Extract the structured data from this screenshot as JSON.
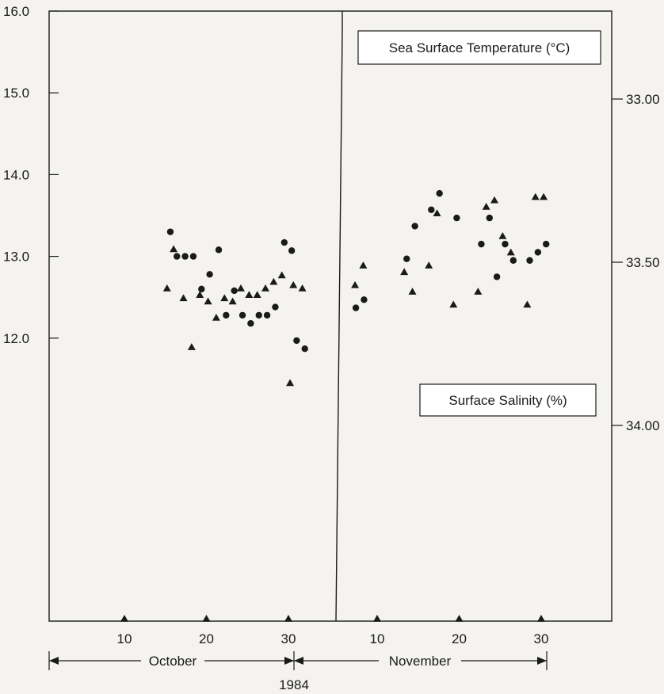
{
  "chart_data": {
    "type": "scatter",
    "left_axis": {
      "ticks": [
        "16.0",
        "15.0",
        "14.0",
        "13.0",
        "12.0"
      ],
      "ylim": [
        11.0,
        16.0
      ],
      "grid": false
    },
    "right_axis": {
      "ticks": [
        "34.00",
        "33.50",
        "33.00"
      ],
      "ylim": [
        32.8,
        34.3
      ],
      "grid": false
    },
    "x_axis": {
      "ticks": [
        "10",
        "20",
        "30",
        "10",
        "20",
        "30"
      ],
      "month_labels": [
        "October",
        "November"
      ],
      "year_label": "1984"
    },
    "legend": {
      "temperature": "Sea Surface Temperature (°C)",
      "salinity": "Surface Salinity (%)"
    },
    "series": [
      {
        "name": "Sea Surface Temperature (°C)",
        "marker": "circle",
        "axis": "left",
        "points": [
          {
            "month": "October",
            "day": 15.6,
            "value": 13.3
          },
          {
            "month": "October",
            "day": 16.4,
            "value": 13.0
          },
          {
            "month": "October",
            "day": 17.4,
            "value": 13.0
          },
          {
            "month": "October",
            "day": 18.4,
            "value": 13.0
          },
          {
            "month": "October",
            "day": 19.4,
            "value": 12.6
          },
          {
            "month": "October",
            "day": 20.4,
            "value": 12.78
          },
          {
            "month": "October",
            "day": 21.5,
            "value": 13.08
          },
          {
            "month": "October",
            "day": 22.4,
            "value": 12.28
          },
          {
            "month": "October",
            "day": 23.4,
            "value": 12.58
          },
          {
            "month": "October",
            "day": 24.4,
            "value": 12.28
          },
          {
            "month": "October",
            "day": 25.4,
            "value": 12.18
          },
          {
            "month": "October",
            "day": 26.4,
            "value": 12.28
          },
          {
            "month": "October",
            "day": 27.4,
            "value": 12.28
          },
          {
            "month": "October",
            "day": 28.4,
            "value": 12.38
          },
          {
            "month": "October",
            "day": 29.5,
            "value": 13.17
          },
          {
            "month": "October",
            "day": 30.4,
            "value": 13.07
          },
          {
            "month": "October",
            "day": 31.0,
            "value": 11.97
          },
          {
            "month": "October",
            "day": 32.0,
            "value": 11.87
          },
          {
            "month": "November",
            "day": 7.4,
            "value": 12.37
          },
          {
            "month": "November",
            "day": 8.4,
            "value": 12.47
          },
          {
            "month": "November",
            "day": 13.6,
            "value": 12.97
          },
          {
            "month": "November",
            "day": 14.6,
            "value": 13.37
          },
          {
            "month": "November",
            "day": 16.6,
            "value": 13.57
          },
          {
            "month": "November",
            "day": 17.6,
            "value": 13.77
          },
          {
            "month": "November",
            "day": 19.7,
            "value": 13.47
          },
          {
            "month": "November",
            "day": 22.7,
            "value": 13.15
          },
          {
            "month": "November",
            "day": 23.7,
            "value": 13.47
          },
          {
            "month": "November",
            "day": 24.6,
            "value": 12.75
          },
          {
            "month": "November",
            "day": 25.6,
            "value": 13.15
          },
          {
            "month": "November",
            "day": 26.6,
            "value": 12.95
          },
          {
            "month": "November",
            "day": 28.6,
            "value": 12.95
          },
          {
            "month": "November",
            "day": 29.6,
            "value": 13.05
          },
          {
            "month": "November",
            "day": 30.6,
            "value": 13.15
          }
        ]
      },
      {
        "name": "Surface Salinity (%)",
        "marker": "triangle",
        "axis": "right",
        "points": [
          {
            "month": "October",
            "day": 15.2,
            "value": 33.58
          },
          {
            "month": "October",
            "day": 16.0,
            "value": 33.46
          },
          {
            "month": "October",
            "day": 17.2,
            "value": 33.61
          },
          {
            "month": "October",
            "day": 18.2,
            "value": 33.76
          },
          {
            "month": "October",
            "day": 19.2,
            "value": 33.6
          },
          {
            "month": "October",
            "day": 20.2,
            "value": 33.62
          },
          {
            "month": "October",
            "day": 21.2,
            "value": 33.67
          },
          {
            "month": "October",
            "day": 22.2,
            "value": 33.61
          },
          {
            "month": "October",
            "day": 23.2,
            "value": 33.62
          },
          {
            "month": "October",
            "day": 24.2,
            "value": 33.58
          },
          {
            "month": "October",
            "day": 25.2,
            "value": 33.6
          },
          {
            "month": "October",
            "day": 26.2,
            "value": 33.6
          },
          {
            "month": "October",
            "day": 27.2,
            "value": 33.58
          },
          {
            "month": "October",
            "day": 28.2,
            "value": 33.56
          },
          {
            "month": "October",
            "day": 29.2,
            "value": 33.54
          },
          {
            "month": "October",
            "day": 30.2,
            "value": 33.87
          },
          {
            "month": "October",
            "day": 30.6,
            "value": 33.57
          },
          {
            "month": "October",
            "day": 31.7,
            "value": 33.58
          },
          {
            "month": "November",
            "day": 7.3,
            "value": 33.57
          },
          {
            "month": "November",
            "day": 8.3,
            "value": 33.51
          },
          {
            "month": "November",
            "day": 13.3,
            "value": 33.53
          },
          {
            "month": "November",
            "day": 14.3,
            "value": 33.59
          },
          {
            "month": "November",
            "day": 16.3,
            "value": 33.51
          },
          {
            "month": "November",
            "day": 17.3,
            "value": 33.35
          },
          {
            "month": "November",
            "day": 19.3,
            "value": 33.63
          },
          {
            "month": "November",
            "day": 22.3,
            "value": 33.59
          },
          {
            "month": "November",
            "day": 23.3,
            "value": 33.33
          },
          {
            "month": "November",
            "day": 24.3,
            "value": 33.31
          },
          {
            "month": "November",
            "day": 25.3,
            "value": 33.42
          },
          {
            "month": "November",
            "day": 26.3,
            "value": 33.47
          },
          {
            "month": "November",
            "day": 28.3,
            "value": 33.63
          },
          {
            "month": "November",
            "day": 29.3,
            "value": 33.3
          },
          {
            "month": "November",
            "day": 30.3,
            "value": 33.3
          }
        ]
      },
      {
        "marker": "triangle",
        "axis": "baseline",
        "points": [
          {
            "month": "October",
            "day": 10.0
          },
          {
            "month": "October",
            "day": 20.0
          },
          {
            "month": "October",
            "day": 30.0
          },
          {
            "month": "November",
            "day": 10.0
          },
          {
            "month": "November",
            "day": 20.0
          },
          {
            "month": "November",
            "day": 30.0
          }
        ]
      }
    ],
    "colors": {
      "ink": "#1a1a1a",
      "paper": "#f4f3ef"
    }
  }
}
